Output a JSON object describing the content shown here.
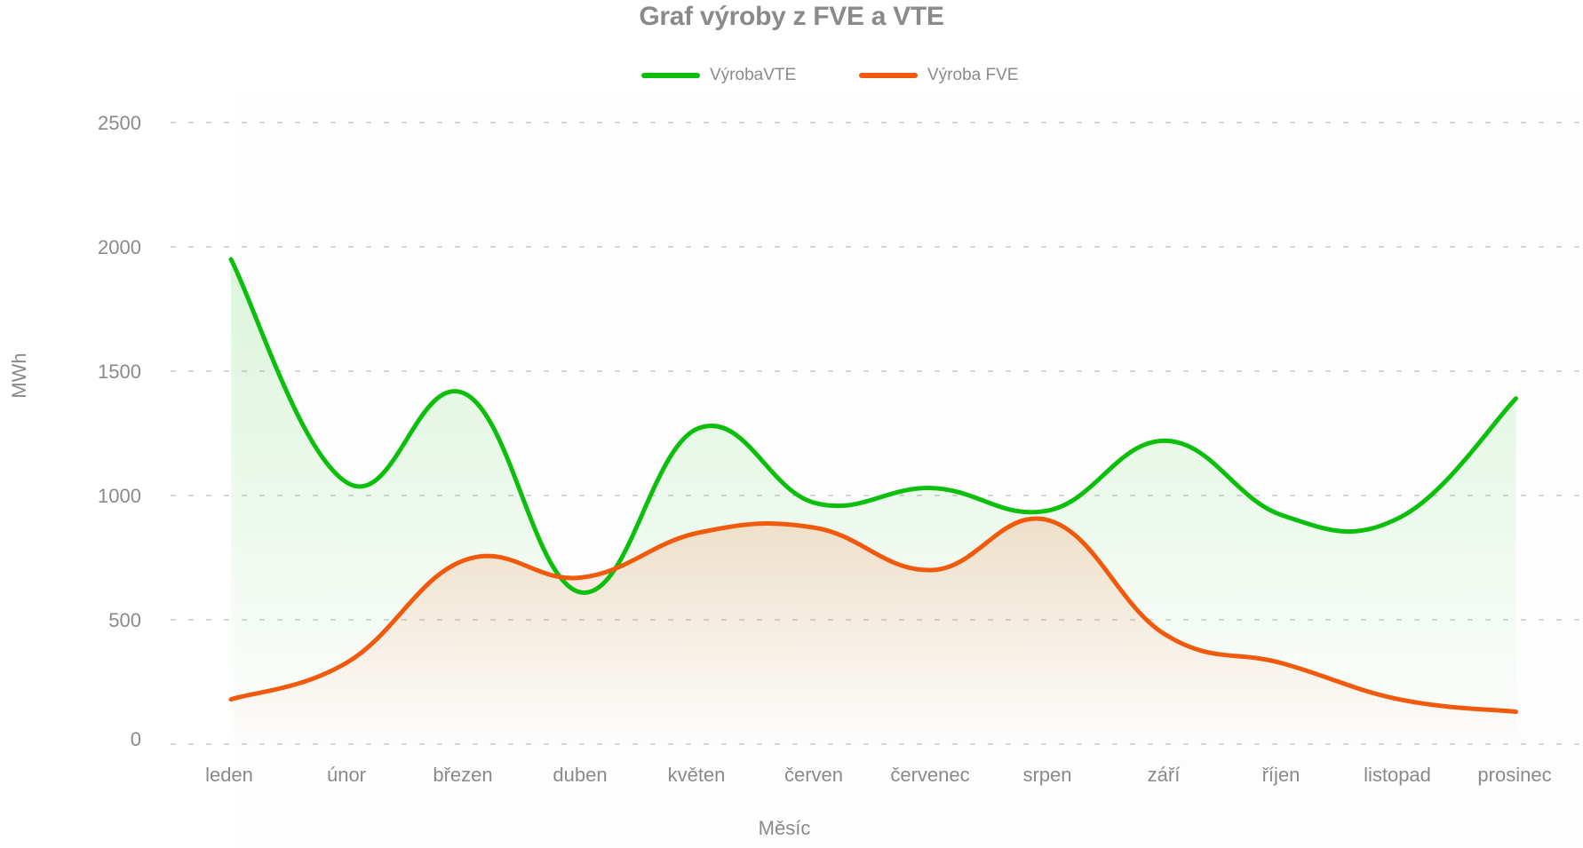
{
  "chart_data": {
    "type": "area",
    "title": "Graf výroby z FVE a VTE",
    "xlabel": "Měsíc",
    "ylabel": "MWh",
    "ylim": [
      0,
      2500
    ],
    "yticks": [
      "0",
      "500",
      "1000",
      "1500",
      "2000",
      "2500"
    ],
    "grid": true,
    "legend_position": "top",
    "categories": [
      "leden",
      "únor",
      "březen",
      "duben",
      "květen",
      "červen",
      "červenec",
      "srpen",
      "září",
      "říjen",
      "listopad",
      "prosinec"
    ],
    "series": [
      {
        "name": "VýrobaVTE",
        "color": "#0cbf0c",
        "values": [
          1950,
          1050,
          1410,
          610,
          1270,
          970,
          1030,
          940,
          1220,
          920,
          910,
          1390
        ]
      },
      {
        "name": "Výroba FVE",
        "color": "#f15a0c",
        "values": [
          180,
          330,
          740,
          670,
          850,
          870,
          700,
          900,
          440,
          325,
          180,
          130
        ]
      }
    ]
  },
  "colors": {
    "text": "#8a8a8a",
    "grid": "#d6d6d6",
    "vte": "#0cbf0c",
    "fve": "#f15a0c"
  }
}
